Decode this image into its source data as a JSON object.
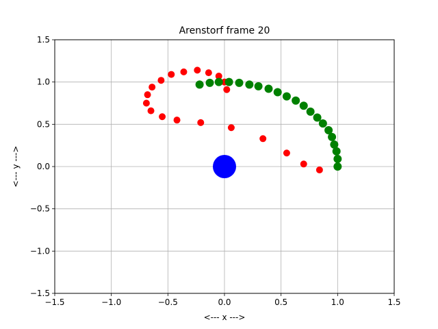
{
  "chart_data": {
    "type": "scatter",
    "title": "Arenstorf frame 20",
    "xlabel": "<---  x  --->",
    "ylabel": "<---  y  --->",
    "xlim": [
      -1.5,
      1.5
    ],
    "ylim": [
      -1.5,
      1.5
    ],
    "xticks": [
      -1.5,
      -1.0,
      -0.5,
      0.0,
      0.5,
      1.0,
      1.5
    ],
    "yticks": [
      -1.5,
      -1.0,
      -0.5,
      0.0,
      0.5,
      1.0,
      1.5
    ],
    "xtick_labels": [
      "−1.5",
      "−1.0",
      "−0.5",
      "0.0",
      "0.5",
      "1.0",
      "1.5"
    ],
    "ytick_labels": [
      "−1.5",
      "−1.0",
      "−0.5",
      "0.0",
      "0.5",
      "1.0",
      "1.5"
    ],
    "grid": true,
    "series": [
      {
        "color": "#0000ff",
        "marker": "large-circle",
        "points": [
          [
            0.0,
            0.0
          ]
        ]
      },
      {
        "color": "#ff0000",
        "marker": "circle",
        "points": [
          [
            1.0,
            0.0
          ],
          [
            0.84,
            -0.04
          ],
          [
            0.7,
            0.03
          ],
          [
            0.55,
            0.16
          ],
          [
            0.34,
            0.33
          ],
          [
            0.06,
            0.46
          ],
          [
            -0.21,
            0.52
          ],
          [
            -0.42,
            0.55
          ],
          [
            -0.55,
            0.59
          ],
          [
            -0.65,
            0.66
          ],
          [
            -0.69,
            0.75
          ],
          [
            -0.68,
            0.85
          ],
          [
            -0.64,
            0.94
          ],
          [
            -0.56,
            1.02
          ],
          [
            -0.47,
            1.09
          ],
          [
            -0.36,
            1.12
          ],
          [
            -0.24,
            1.14
          ],
          [
            -0.14,
            1.11
          ],
          [
            -0.05,
            1.07
          ],
          [
            0.0,
            1.0
          ],
          [
            0.02,
            0.91
          ]
        ]
      },
      {
        "color": "#008000",
        "marker": "circle",
        "points": [
          [
            1.0,
            0.0
          ],
          [
            1.0,
            0.09
          ],
          [
            0.99,
            0.18
          ],
          [
            0.97,
            0.26
          ],
          [
            0.95,
            0.35
          ],
          [
            0.92,
            0.43
          ],
          [
            0.87,
            0.51
          ],
          [
            0.82,
            0.58
          ],
          [
            0.76,
            0.65
          ],
          [
            0.7,
            0.72
          ],
          [
            0.63,
            0.78
          ],
          [
            0.55,
            0.83
          ],
          [
            0.47,
            0.88
          ],
          [
            0.39,
            0.92
          ],
          [
            0.3,
            0.95
          ],
          [
            0.22,
            0.97
          ],
          [
            0.13,
            0.99
          ],
          [
            0.04,
            1.0
          ],
          [
            -0.05,
            1.0
          ],
          [
            -0.13,
            0.99
          ],
          [
            -0.22,
            0.97
          ]
        ]
      }
    ]
  }
}
